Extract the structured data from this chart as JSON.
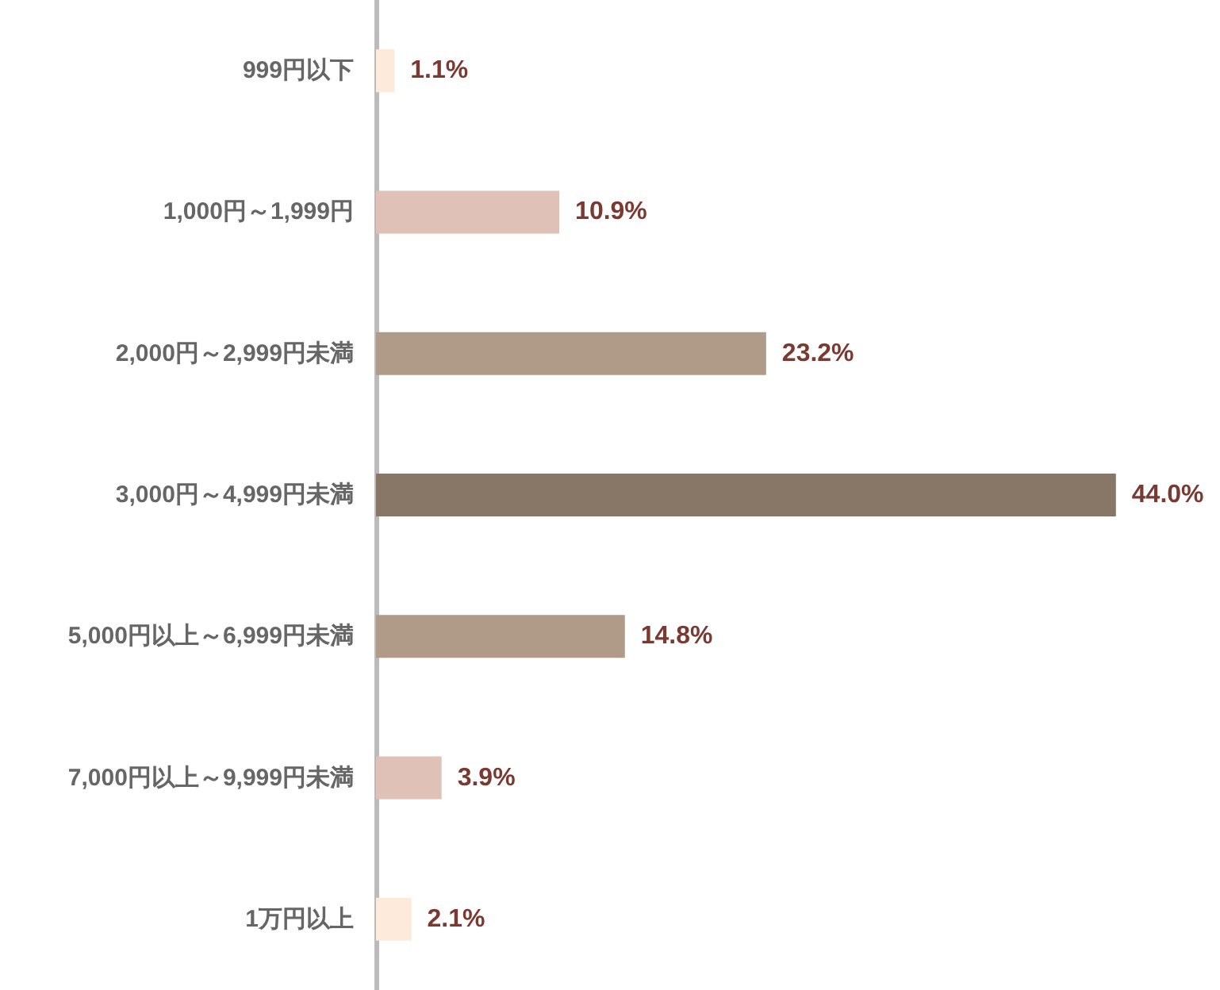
{
  "chart_data": {
    "type": "bar",
    "orientation": "horizontal",
    "categories": [
      "999円以下",
      "1,000円～1,999円",
      "2,000円～2,999円未満",
      "3,000円～4,999円未満",
      "5,000円以上～6,999円未満",
      "7,000円以上～9,999円未満",
      "1万円以上"
    ],
    "values": [
      1.1,
      10.9,
      23.2,
      44.0,
      14.8,
      3.9,
      2.1
    ],
    "value_labels": [
      "1.1%",
      "10.9%",
      "23.2%",
      "44.0%",
      "14.8%",
      "3.9%",
      "2.1%"
    ],
    "colors": [
      "#fdeadb",
      "#dfc1b7",
      "#b09b89",
      "#887667",
      "#b09b89",
      "#dfc1b7",
      "#fdeadb"
    ]
  }
}
